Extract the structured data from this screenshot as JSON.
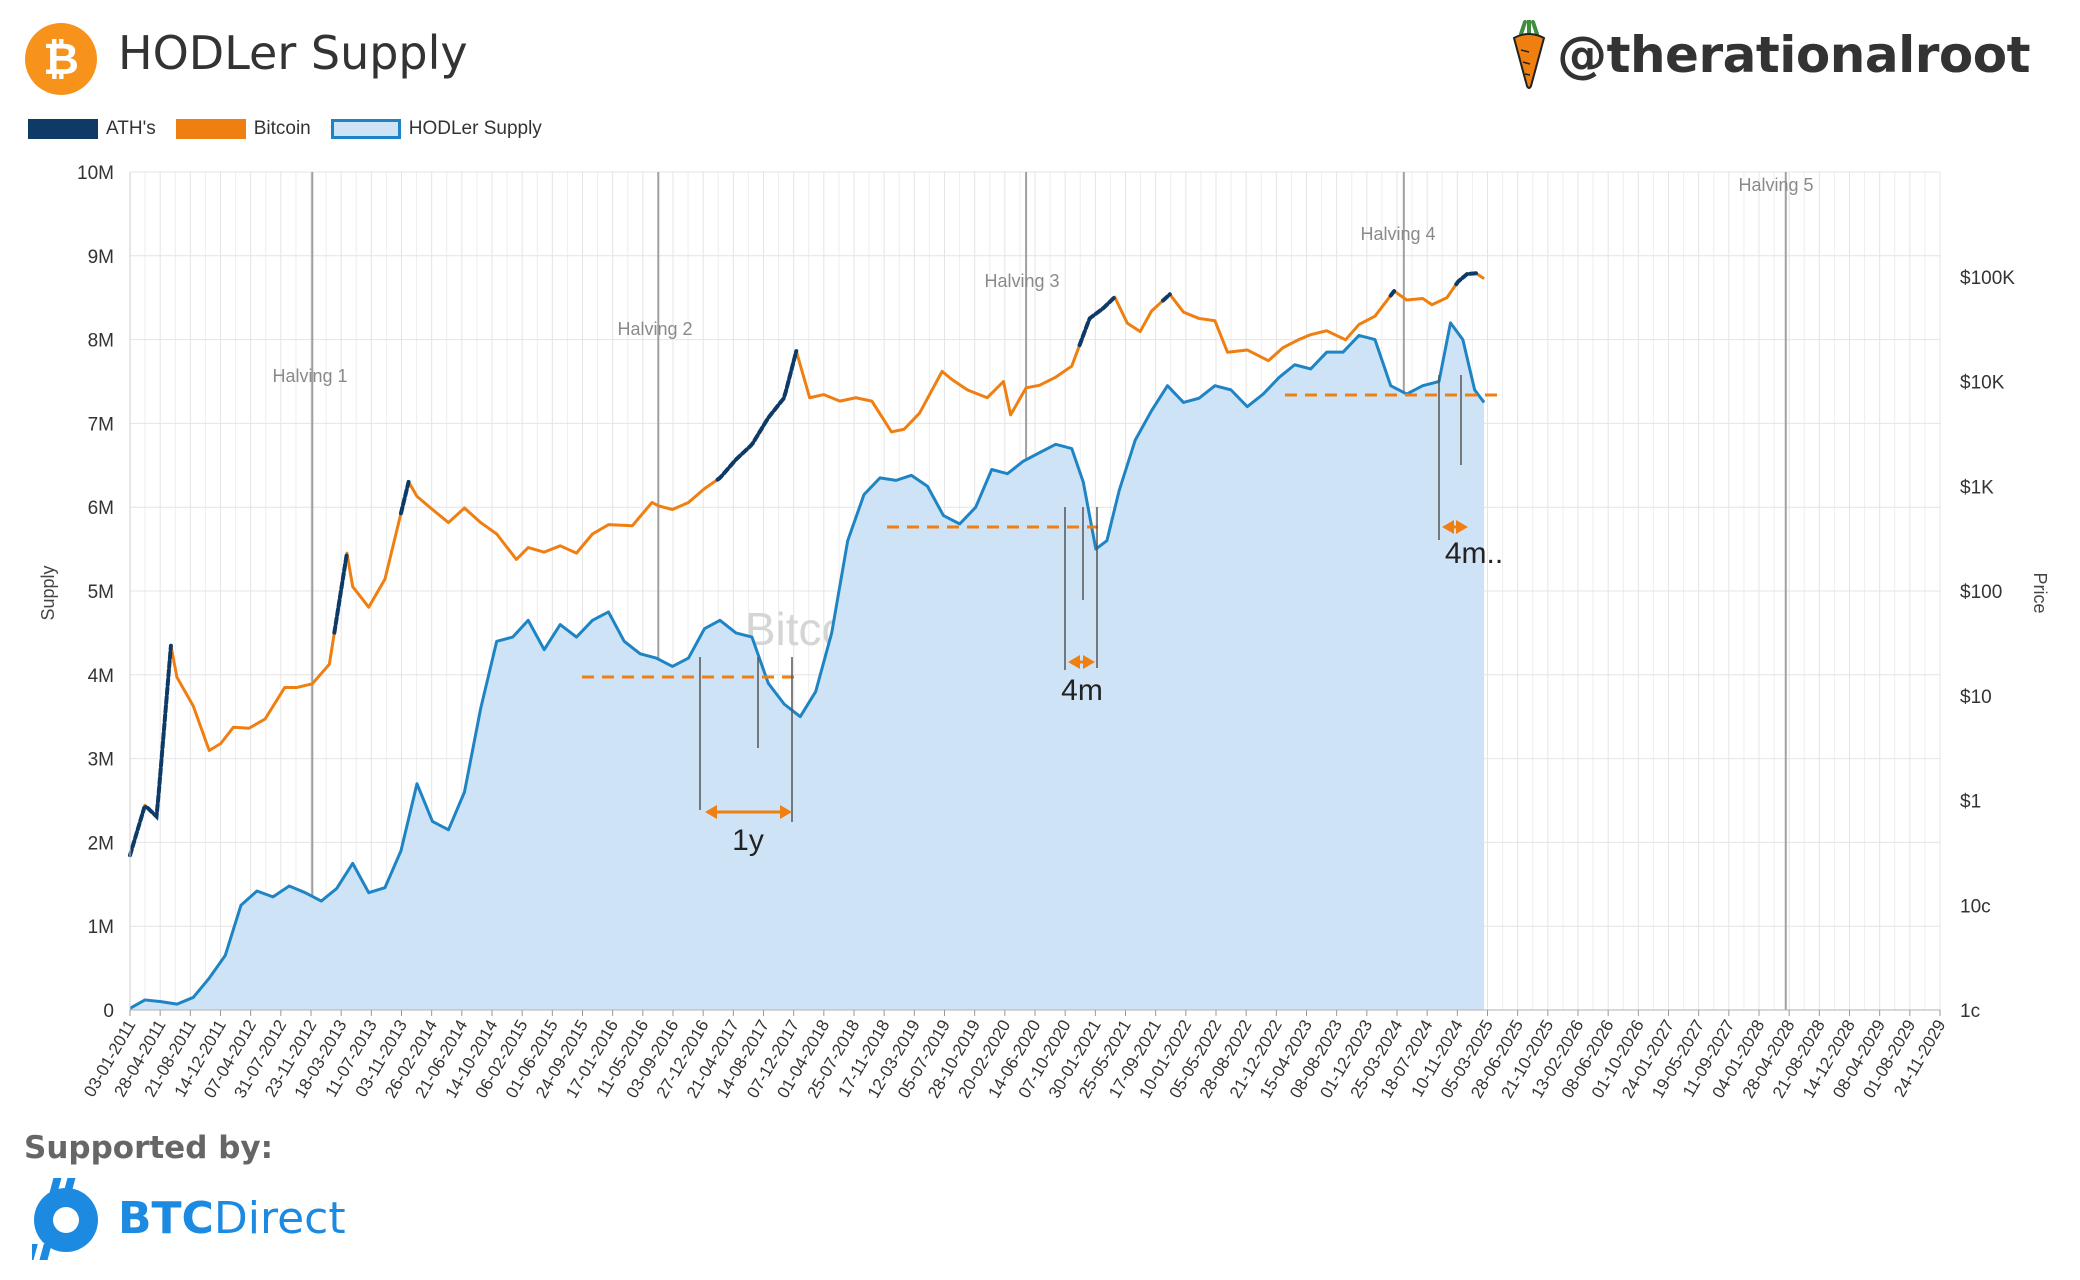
{
  "header": {
    "title": "HODLer Supply",
    "brand": "@therationalroot",
    "btc_glyph": "₿"
  },
  "legend": [
    {
      "label": "ATH's",
      "color": "#0d3a66",
      "style": "solid"
    },
    {
      "label": "Bitcoin",
      "color": "#f07f12",
      "style": "solid"
    },
    {
      "label": "HODLer Supply",
      "color": "#1f84c4",
      "fill": "#cfe3f6",
      "style": "area"
    }
  ],
  "footer": {
    "supported_label": "Supported by:",
    "sponsor_bold": "BTC",
    "sponsor_rest": "Direct"
  },
  "chart_data": {
    "type": "line",
    "watermark": "BitcoinStrategyPlatform.com",
    "left_axis": {
      "label": "Supply",
      "min": 0,
      "max": 10000000,
      "ticks": [
        0,
        1000000,
        2000000,
        3000000,
        4000000,
        5000000,
        6000000,
        7000000,
        8000000,
        9000000,
        10000000
      ],
      "tick_labels": [
        "0",
        "1M",
        "2M",
        "3M",
        "4M",
        "5M",
        "6M",
        "7M",
        "8M",
        "9M",
        "10M"
      ]
    },
    "right_axis": {
      "label": "Price",
      "scale": "log",
      "min": 0.01,
      "max": 1000000,
      "ticks": [
        0.01,
        0.1,
        1,
        10,
        100,
        1000,
        10000,
        100000
      ],
      "tick_labels": [
        "1c",
        "10c",
        "$1",
        "$10",
        "$100",
        "$1K",
        "$10K",
        "$100K"
      ]
    },
    "x_axis": {
      "start": "2011-01-03",
      "end": "2029-11-24",
      "tick_labels": [
        "03-01-2011",
        "28-04-2011",
        "21-08-2011",
        "14-12-2011",
        "07-04-2012",
        "31-07-2012",
        "23-11-2012",
        "18-03-2013",
        "11-07-2013",
        "03-11-2013",
        "26-02-2014",
        "21-06-2014",
        "14-10-2014",
        "06-02-2015",
        "01-06-2015",
        "24-09-2015",
        "17-01-2016",
        "11-05-2016",
        "03-09-2016",
        "27-12-2016",
        "21-04-2017",
        "14-08-2017",
        "07-12-2017",
        "01-04-2018",
        "25-07-2018",
        "17-11-2018",
        "12-03-2019",
        "05-07-2019",
        "28-10-2019",
        "20-02-2020",
        "14-06-2020",
        "07-10-2020",
        "30-01-2021",
        "25-05-2021",
        "17-09-2021",
        "10-01-2022",
        "05-05-2022",
        "28-08-2022",
        "21-12-2022",
        "15-04-2023",
        "08-08-2023",
        "01-12-2023",
        "25-03-2024",
        "18-07-2024",
        "10-11-2024",
        "05-03-2025",
        "28-06-2025",
        "21-10-2025",
        "13-02-2026",
        "08-06-2026",
        "01-10-2026",
        "24-01-2027",
        "19-05-2027",
        "11-09-2027",
        "04-01-2028",
        "28-04-2028",
        "21-08-2028",
        "14-12-2028",
        "08-04-2029",
        "01-08-2029",
        "24-11-2029"
      ],
      "grid": true
    },
    "halvings": [
      {
        "label": "Halving 1",
        "date": "2012-11-28"
      },
      {
        "label": "Halving 2",
        "date": "2016-07-09"
      },
      {
        "label": "Halving 3",
        "date": "2020-05-11"
      },
      {
        "label": "Halving 4",
        "date": "2024-04-20"
      },
      {
        "label": "Halving 5",
        "date": "2028-04-15"
      }
    ],
    "series": [
      {
        "name": "HODLer Supply",
        "axis": "left",
        "points": [
          [
            "2011-01-03",
            20000
          ],
          [
            "2011-03-01",
            120000
          ],
          [
            "2011-05-01",
            100000
          ],
          [
            "2011-07-01",
            70000
          ],
          [
            "2011-09-01",
            150000
          ],
          [
            "2011-11-01",
            380000
          ],
          [
            "2012-01-01",
            650000
          ],
          [
            "2012-03-01",
            1250000
          ],
          [
            "2012-05-01",
            1420000
          ],
          [
            "2012-07-01",
            1350000
          ],
          [
            "2012-09-01",
            1480000
          ],
          [
            "2012-11-01",
            1400000
          ],
          [
            "2013-01-01",
            1300000
          ],
          [
            "2013-03-01",
            1450000
          ],
          [
            "2013-05-01",
            1750000
          ],
          [
            "2013-07-01",
            1400000
          ],
          [
            "2013-09-01",
            1460000
          ],
          [
            "2013-11-01",
            1900000
          ],
          [
            "2014-01-01",
            2700000
          ],
          [
            "2014-03-01",
            2250000
          ],
          [
            "2014-05-01",
            2150000
          ],
          [
            "2014-07-01",
            2600000
          ],
          [
            "2014-09-01",
            3600000
          ],
          [
            "2014-11-01",
            4400000
          ],
          [
            "2015-01-01",
            4450000
          ],
          [
            "2015-03-01",
            4650000
          ],
          [
            "2015-05-01",
            4300000
          ],
          [
            "2015-07-01",
            4600000
          ],
          [
            "2015-09-01",
            4450000
          ],
          [
            "2015-11-01",
            4650000
          ],
          [
            "2016-01-01",
            4750000
          ],
          [
            "2016-03-01",
            4400000
          ],
          [
            "2016-05-01",
            4250000
          ],
          [
            "2016-07-01",
            4200000
          ],
          [
            "2016-09-01",
            4100000
          ],
          [
            "2016-11-01",
            4200000
          ],
          [
            "2017-01-01",
            4550000
          ],
          [
            "2017-03-01",
            4650000
          ],
          [
            "2017-05-01",
            4500000
          ],
          [
            "2017-07-01",
            4450000
          ],
          [
            "2017-09-01",
            3900000
          ],
          [
            "2017-11-01",
            3650000
          ],
          [
            "2018-01-01",
            3500000
          ],
          [
            "2018-03-01",
            3800000
          ],
          [
            "2018-05-01",
            4500000
          ],
          [
            "2018-07-01",
            5600000
          ],
          [
            "2018-09-01",
            6150000
          ],
          [
            "2018-11-01",
            6350000
          ],
          [
            "2019-01-01",
            6320000
          ],
          [
            "2019-03-01",
            6380000
          ],
          [
            "2019-05-01",
            6250000
          ],
          [
            "2019-07-01",
            5900000
          ],
          [
            "2019-09-01",
            5800000
          ],
          [
            "2019-11-01",
            6000000
          ],
          [
            "2020-01-01",
            6450000
          ],
          [
            "2020-03-01",
            6400000
          ],
          [
            "2020-05-01",
            6550000
          ],
          [
            "2020-07-01",
            6650000
          ],
          [
            "2020-09-01",
            6750000
          ],
          [
            "2020-11-01",
            6700000
          ],
          [
            "2020-12-15",
            6300000
          ],
          [
            "2021-02-01",
            5500000
          ],
          [
            "2021-03-15",
            5600000
          ],
          [
            "2021-05-01",
            6200000
          ],
          [
            "2021-07-01",
            6800000
          ],
          [
            "2021-09-01",
            7150000
          ],
          [
            "2021-11-01",
            7450000
          ],
          [
            "2022-01-01",
            7250000
          ],
          [
            "2022-03-01",
            7300000
          ],
          [
            "2022-05-01",
            7450000
          ],
          [
            "2022-07-01",
            7400000
          ],
          [
            "2022-09-01",
            7200000
          ],
          [
            "2022-11-01",
            7350000
          ],
          [
            "2023-01-01",
            7550000
          ],
          [
            "2023-03-01",
            7700000
          ],
          [
            "2023-05-01",
            7650000
          ],
          [
            "2023-07-01",
            7850000
          ],
          [
            "2023-09-01",
            7850000
          ],
          [
            "2023-11-01",
            8050000
          ],
          [
            "2024-01-01",
            8000000
          ],
          [
            "2024-03-01",
            7450000
          ],
          [
            "2024-05-01",
            7350000
          ],
          [
            "2024-07-01",
            7450000
          ],
          [
            "2024-09-01",
            7500000
          ],
          [
            "2024-10-15",
            8200000
          ],
          [
            "2024-12-01",
            8000000
          ],
          [
            "2025-01-15",
            7400000
          ],
          [
            "2025-02-20",
            7250000
          ]
        ]
      },
      {
        "name": "Bitcoin",
        "axis": "right",
        "points": [
          [
            "2011-01-03",
            0.3
          ],
          [
            "2011-03-01",
            0.9
          ],
          [
            "2011-04-15",
            0.7
          ],
          [
            "2011-06-08",
            30
          ],
          [
            "2011-07-01",
            15
          ],
          [
            "2011-09-01",
            8
          ],
          [
            "2011-11-01",
            3
          ],
          [
            "2011-12-15",
            3.5
          ],
          [
            "2012-02-01",
            5
          ],
          [
            "2012-04-01",
            4.9
          ],
          [
            "2012-06-01",
            6
          ],
          [
            "2012-08-15",
            12
          ],
          [
            "2012-10-01",
            12
          ],
          [
            "2012-11-28",
            13
          ],
          [
            "2013-02-01",
            20
          ],
          [
            "2013-04-09",
            230
          ],
          [
            "2013-05-01",
            110
          ],
          [
            "2013-07-01",
            70
          ],
          [
            "2013-09-01",
            130
          ],
          [
            "2013-11-30",
            1100
          ],
          [
            "2014-01-01",
            800
          ],
          [
            "2014-03-01",
            600
          ],
          [
            "2014-05-01",
            450
          ],
          [
            "2014-07-01",
            620
          ],
          [
            "2014-09-01",
            450
          ],
          [
            "2014-11-01",
            350
          ],
          [
            "2015-01-15",
            200
          ],
          [
            "2015-03-01",
            260
          ],
          [
            "2015-05-01",
            235
          ],
          [
            "2015-07-01",
            270
          ],
          [
            "2015-09-01",
            230
          ],
          [
            "2015-11-01",
            350
          ],
          [
            "2016-01-01",
            430
          ],
          [
            "2016-04-01",
            420
          ],
          [
            "2016-06-15",
            700
          ],
          [
            "2016-07-09",
            650
          ],
          [
            "2016-09-01",
            600
          ],
          [
            "2016-11-01",
            700
          ],
          [
            "2017-01-01",
            950
          ],
          [
            "2017-03-01",
            1200
          ],
          [
            "2017-05-01",
            1800
          ],
          [
            "2017-07-01",
            2500
          ],
          [
            "2017-09-01",
            4500
          ],
          [
            "2017-11-01",
            7000
          ],
          [
            "2017-12-17",
            19500
          ],
          [
            "2018-02-06",
            7000
          ],
          [
            "2018-04-01",
            7500
          ],
          [
            "2018-06-01",
            6500
          ],
          [
            "2018-08-01",
            7000
          ],
          [
            "2018-10-01",
            6500
          ],
          [
            "2018-12-15",
            3300
          ],
          [
            "2019-02-01",
            3500
          ],
          [
            "2019-04-01",
            5000
          ],
          [
            "2019-06-26",
            12500
          ],
          [
            "2019-08-01",
            10500
          ],
          [
            "2019-10-01",
            8300
          ],
          [
            "2019-12-15",
            7000
          ],
          [
            "2020-02-15",
            10000
          ],
          [
            "2020-03-13",
            4800
          ],
          [
            "2020-05-11",
            8700
          ],
          [
            "2020-07-01",
            9200
          ],
          [
            "2020-09-01",
            11000
          ],
          [
            "2020-11-01",
            14000
          ],
          [
            "2021-01-08",
            40000
          ],
          [
            "2021-03-01",
            50000
          ],
          [
            "2021-04-14",
            64000
          ],
          [
            "2021-06-01",
            36000
          ],
          [
            "2021-07-20",
            30000
          ],
          [
            "2021-09-01",
            47000
          ],
          [
            "2021-11-10",
            68000
          ],
          [
            "2022-01-01",
            46000
          ],
          [
            "2022-03-01",
            40000
          ],
          [
            "2022-05-01",
            38000
          ],
          [
            "2022-06-18",
            19000
          ],
          [
            "2022-09-01",
            20000
          ],
          [
            "2022-11-21",
            15800
          ],
          [
            "2023-01-15",
            21000
          ],
          [
            "2023-03-15",
            25000
          ],
          [
            "2023-05-01",
            28000
          ],
          [
            "2023-07-01",
            30500
          ],
          [
            "2023-09-11",
            25000
          ],
          [
            "2023-11-01",
            35000
          ],
          [
            "2024-01-01",
            42000
          ],
          [
            "2024-03-14",
            73000
          ],
          [
            "2024-05-01",
            60000
          ],
          [
            "2024-07-01",
            62000
          ],
          [
            "2024-08-05",
            54000
          ],
          [
            "2024-10-01",
            63000
          ],
          [
            "2024-11-13",
            90000
          ],
          [
            "2024-12-17",
            106000
          ],
          [
            "2025-01-20",
            108000
          ],
          [
            "2025-02-20",
            96000
          ]
        ]
      }
    ],
    "ath_ranges": [
      [
        "2011-01-03",
        "2011-06-08"
      ],
      [
        "2013-02-20",
        "2013-04-09"
      ],
      [
        "2013-11-01",
        "2013-11-30"
      ],
      [
        "2017-02-20",
        "2017-12-17"
      ],
      [
        "2020-12-01",
        "2021-04-14"
      ],
      [
        "2021-10-15",
        "2021-11-10"
      ],
      [
        "2024-03-01",
        "2024-03-14"
      ],
      [
        "2024-11-06",
        "2025-01-20"
      ]
    ],
    "annotations": [
      {
        "label": "1y",
        "color": "#f07f12"
      },
      {
        "label": "4m",
        "color": "#f07f12"
      },
      {
        "label": "4m..",
        "color": "#f07f12"
      }
    ]
  }
}
